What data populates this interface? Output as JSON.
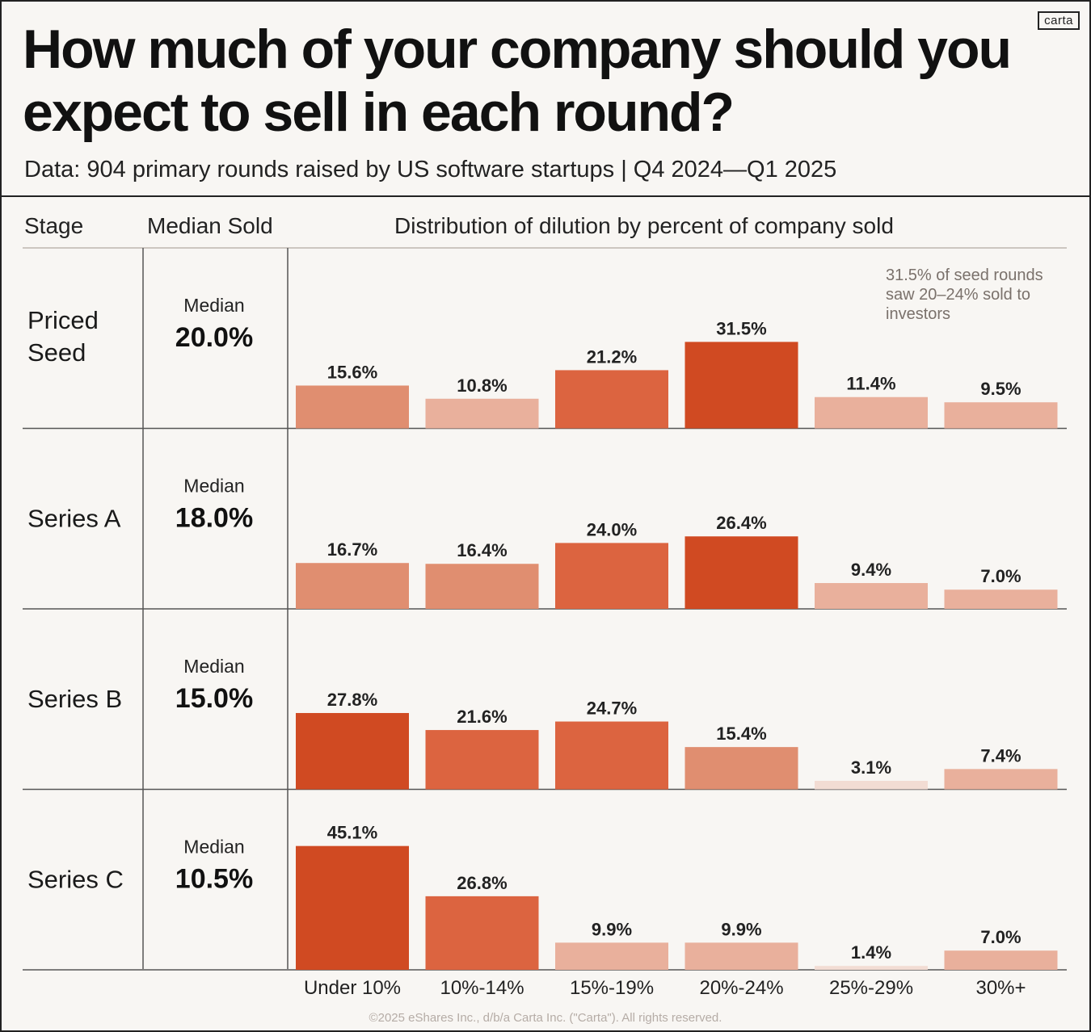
{
  "logo": "carta",
  "title": "How much of your company should you expect to sell in each round?",
  "subtitle": "Data: 904 primary rounds raised by US software startups | Q4 2024—Q1 2025",
  "table_headers": {
    "stage": "Stage",
    "median": "Median Sold",
    "distribution": "Distribution of dilution by percent of company sold"
  },
  "annotation": [
    "31.5% of seed rounds",
    "saw 20–24% sold to",
    "investors"
  ],
  "footer": "©2025 eShares Inc., d/b/a Carta Inc. (\"Carta\"). All rights reserved.",
  "colors": {
    "darkest": "#d04a22",
    "dark": "#dc6440",
    "medium": "#e08e70",
    "light": "#e9b09c",
    "lightest": "#f2dcd3"
  },
  "chart_data": {
    "type": "bar",
    "categories": [
      "Under 10%",
      "10%-14%",
      "15%-19%",
      "20%-24%",
      "25%-29%",
      "30%+"
    ],
    "series": [
      {
        "name": "Priced Seed",
        "label_lines": [
          "Priced",
          "Seed"
        ],
        "median_label": "Median",
        "median_value": "20.0%",
        "values": [
          15.6,
          10.8,
          21.2,
          31.5,
          11.4,
          9.5
        ]
      },
      {
        "name": "Series A",
        "label_lines": [
          "Series A"
        ],
        "median_label": "Median",
        "median_value": "18.0%",
        "values": [
          16.7,
          16.4,
          24.0,
          26.4,
          9.4,
          7.0
        ]
      },
      {
        "name": "Series B",
        "label_lines": [
          "Series B"
        ],
        "median_label": "Median",
        "median_value": "15.0%",
        "values": [
          27.8,
          21.6,
          24.7,
          15.4,
          3.1,
          7.4
        ]
      },
      {
        "name": "Series C",
        "label_lines": [
          "Series C"
        ],
        "median_label": "Median",
        "median_value": "10.5%",
        "values": [
          45.1,
          26.8,
          9.9,
          9.9,
          1.4,
          7.0
        ]
      }
    ],
    "value_suffix": "%",
    "ylim": [
      0,
      50
    ],
    "grid": false
  }
}
